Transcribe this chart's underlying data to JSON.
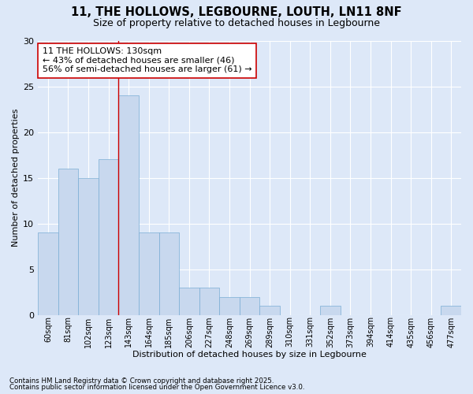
{
  "title_line1": "11, THE HOLLOWS, LEGBOURNE, LOUTH, LN11 8NF",
  "title_line2": "Size of property relative to detached houses in Legbourne",
  "xlabel": "Distribution of detached houses by size in Legbourne",
  "ylabel": "Number of detached properties",
  "categories": [
    "60sqm",
    "81sqm",
    "102sqm",
    "123sqm",
    "143sqm",
    "164sqm",
    "185sqm",
    "206sqm",
    "227sqm",
    "248sqm",
    "269sqm",
    "289sqm",
    "310sqm",
    "331sqm",
    "352sqm",
    "373sqm",
    "394sqm",
    "414sqm",
    "435sqm",
    "456sqm",
    "477sqm"
  ],
  "values": [
    9,
    16,
    15,
    17,
    24,
    9,
    9,
    3,
    3,
    2,
    2,
    1,
    0,
    0,
    1,
    0,
    0,
    0,
    0,
    0,
    1
  ],
  "bar_color": "#c8d8ee",
  "bar_edge_color": "#7aadd4",
  "background_color": "#dde8f8",
  "grid_color": "#ffffff",
  "annotation_text": "11 THE HOLLOWS: 130sqm\n← 43% of detached houses are smaller (46)\n56% of semi-detached houses are larger (61) →",
  "redline_x": 3.5,
  "annotation_box_facecolor": "#ffffff",
  "annotation_box_edgecolor": "#cc0000",
  "redline_color": "#cc0000",
  "ylim": [
    0,
    30
  ],
  "yticks": [
    0,
    5,
    10,
    15,
    20,
    25,
    30
  ],
  "footer_line1": "Contains HM Land Registry data © Crown copyright and database right 2025.",
  "footer_line2": "Contains public sector information licensed under the Open Government Licence v3.0."
}
